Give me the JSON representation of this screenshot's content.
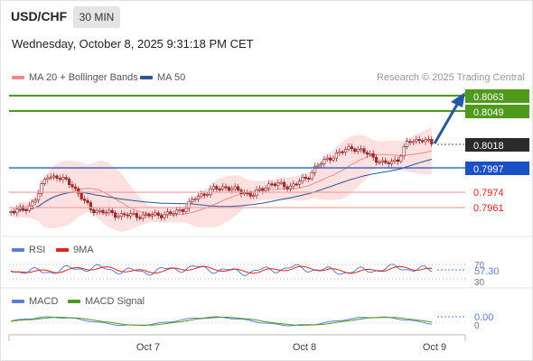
{
  "header": {
    "symbol": "USD/CHF",
    "timeframe": "30 MIN",
    "datetime": "Wednesday, October 8, 2025 9:31:18 PM CET"
  },
  "legend": {
    "price": [
      {
        "label": "MA 20 + Bollinger Bands",
        "color": "#ef8a8a"
      },
      {
        "label": "MA 50",
        "color": "#2f5597"
      }
    ],
    "rsi": [
      {
        "label": "RSI",
        "color": "#5b7fd6"
      },
      {
        "label": "9MA",
        "color": "#d9271f"
      }
    ],
    "macd": [
      {
        "label": "MACD",
        "color": "#5b7fd6"
      },
      {
        "label": "MACD Signal",
        "color": "#4f9a1c"
      }
    ]
  },
  "credit": "Research © 2025 Trading Central",
  "colors": {
    "target_green": "#4f9a1c",
    "pivot_blue": "#1b4fc4",
    "support_red": "#e57373",
    "current_price_box": "#2b2b2b",
    "arrow": "#2458a6",
    "bb_fill": "#fde0e0",
    "candle": "#b3282d"
  },
  "levels": {
    "target_2": "0.8063",
    "target_1": "0.8049",
    "current_price": "0.8018",
    "pivot": "0.7997",
    "support_1": "0.7974",
    "support_2": "0.7961"
  },
  "rsi_panel": {
    "upper_label": "70",
    "value": "57.30",
    "lower_label": "30"
  },
  "macd_panel": {
    "value": "0.00",
    "zero_label": "0"
  },
  "x_axis": {
    "ticks": [
      "Oct 7",
      "Oct 8",
      "Oct 9"
    ]
  }
}
